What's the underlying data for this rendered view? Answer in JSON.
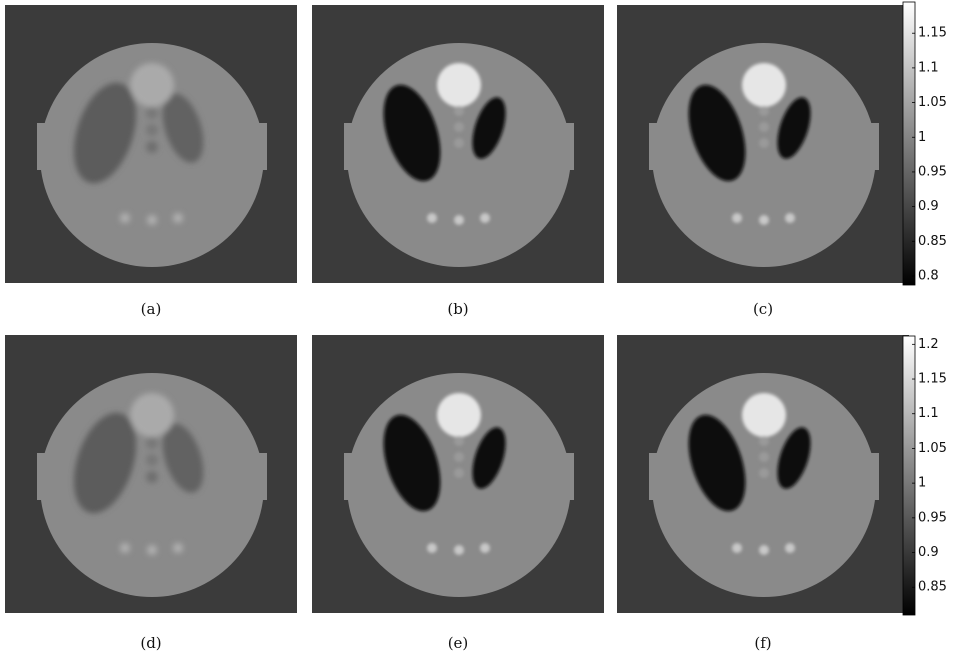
{
  "panels": {
    "labels": [
      "(a)",
      "(b)",
      "(c)",
      "(d)",
      "(e)",
      "(f)"
    ]
  },
  "colorbars": [
    {
      "ylim": [
        0.787,
        1.195
      ],
      "yticks": [
        0.8,
        0.85,
        0.9,
        0.95,
        1,
        1.05,
        1.1,
        1.15
      ]
    },
    {
      "ylim": [
        0.81,
        1.212
      ],
      "yticks": [
        0.85,
        0.9,
        0.95,
        1,
        1.05,
        1.1,
        1.15,
        1.2
      ]
    }
  ]
}
